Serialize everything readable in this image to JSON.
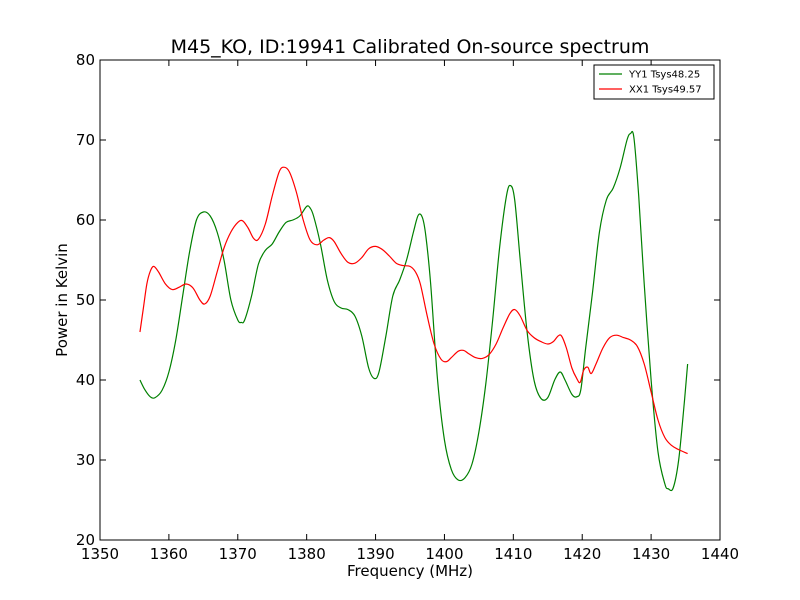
{
  "chart_data": {
    "type": "line",
    "title": "M45_KO, ID:19941 Calibrated On-source spectrum",
    "xlabel": "Frequency (MHz)",
    "ylabel": "Power in Kelvin",
    "xlim": [
      1350,
      1440
    ],
    "ylim": [
      20,
      80
    ],
    "xticks": [
      1350,
      1360,
      1370,
      1380,
      1390,
      1400,
      1410,
      1420,
      1430,
      1440
    ],
    "yticks": [
      20,
      30,
      40,
      50,
      60,
      70,
      80
    ],
    "grid": false,
    "legend_position": "top-right",
    "series": [
      {
        "name": "YY1 Tsys48.25",
        "color": "#008000",
        "points": [
          [
            1355.8,
            40.0
          ],
          [
            1356.5,
            38.8
          ],
          [
            1357.3,
            37.9
          ],
          [
            1358.0,
            37.8
          ],
          [
            1359.0,
            38.7
          ],
          [
            1360.0,
            41.0
          ],
          [
            1361.0,
            45.0
          ],
          [
            1362.0,
            50.5
          ],
          [
            1363.0,
            56.0
          ],
          [
            1364.0,
            60.0
          ],
          [
            1365.0,
            61.0
          ],
          [
            1366.0,
            60.5
          ],
          [
            1367.0,
            58.5
          ],
          [
            1368.0,
            55.0
          ],
          [
            1369.0,
            50.0
          ],
          [
            1370.0,
            47.5
          ],
          [
            1370.5,
            47.2
          ],
          [
            1371.0,
            47.5
          ],
          [
            1372.0,
            50.5
          ],
          [
            1373.0,
            54.5
          ],
          [
            1374.0,
            56.2
          ],
          [
            1375.0,
            57.0
          ],
          [
            1376.0,
            58.5
          ],
          [
            1377.0,
            59.7
          ],
          [
            1378.0,
            60.0
          ],
          [
            1379.0,
            60.5
          ],
          [
            1380.0,
            61.7
          ],
          [
            1380.5,
            61.5
          ],
          [
            1381.0,
            60.5
          ],
          [
            1382.0,
            57.0
          ],
          [
            1383.0,
            52.5
          ],
          [
            1384.0,
            49.8
          ],
          [
            1385.0,
            49.0
          ],
          [
            1386.0,
            48.8
          ],
          [
            1387.0,
            48.0
          ],
          [
            1388.0,
            45.5
          ],
          [
            1389.0,
            41.5
          ],
          [
            1389.8,
            40.2
          ],
          [
            1390.5,
            41.0
          ],
          [
            1391.5,
            45.5
          ],
          [
            1392.5,
            50.5
          ],
          [
            1393.5,
            52.5
          ],
          [
            1394.5,
            55.0
          ],
          [
            1395.5,
            58.5
          ],
          [
            1396.2,
            60.6
          ],
          [
            1396.8,
            60.3
          ],
          [
            1397.3,
            58.0
          ],
          [
            1398.0,
            52.0
          ],
          [
            1399.0,
            40.0
          ],
          [
            1400.0,
            32.5
          ],
          [
            1401.0,
            28.8
          ],
          [
            1402.0,
            27.5
          ],
          [
            1403.0,
            27.8
          ],
          [
            1404.0,
            29.5
          ],
          [
            1405.0,
            33.5
          ],
          [
            1406.0,
            39.5
          ],
          [
            1407.0,
            47.5
          ],
          [
            1408.0,
            56.5
          ],
          [
            1409.0,
            63.0
          ],
          [
            1409.6,
            64.3
          ],
          [
            1410.2,
            62.5
          ],
          [
            1411.0,
            55.0
          ],
          [
            1412.0,
            46.0
          ],
          [
            1413.0,
            40.0
          ],
          [
            1414.0,
            37.7
          ],
          [
            1415.0,
            37.8
          ],
          [
            1416.0,
            40.0
          ],
          [
            1416.8,
            41.0
          ],
          [
            1417.5,
            40.0
          ],
          [
            1418.5,
            38.2
          ],
          [
            1419.2,
            37.9
          ],
          [
            1419.8,
            38.8
          ],
          [
            1420.5,
            44.0
          ],
          [
            1421.5,
            51.0
          ],
          [
            1422.5,
            58.5
          ],
          [
            1423.5,
            62.5
          ],
          [
            1424.5,
            64.0
          ],
          [
            1425.5,
            66.5
          ],
          [
            1426.5,
            70.0
          ],
          [
            1427.0,
            70.8
          ],
          [
            1427.5,
            70.3
          ],
          [
            1428.2,
            63.0
          ],
          [
            1429.0,
            52.0
          ],
          [
            1430.0,
            40.0
          ],
          [
            1431.0,
            31.0
          ],
          [
            1432.0,
            27.0
          ],
          [
            1432.5,
            26.4
          ],
          [
            1433.2,
            26.5
          ],
          [
            1434.0,
            30.0
          ],
          [
            1434.8,
            37.0
          ],
          [
            1435.3,
            42.0
          ]
        ]
      },
      {
        "name": "XX1 Tsys49.57",
        "color": "#ff0000",
        "points": [
          [
            1355.8,
            46.0
          ],
          [
            1356.3,
            49.0
          ],
          [
            1356.8,
            52.0
          ],
          [
            1357.3,
            53.6
          ],
          [
            1357.8,
            54.2
          ],
          [
            1358.5,
            53.5
          ],
          [
            1359.5,
            52.0
          ],
          [
            1360.5,
            51.3
          ],
          [
            1361.5,
            51.6
          ],
          [
            1362.5,
            52.0
          ],
          [
            1363.5,
            51.5
          ],
          [
            1364.5,
            50.0
          ],
          [
            1365.2,
            49.5
          ],
          [
            1366.0,
            50.5
          ],
          [
            1367.0,
            53.5
          ],
          [
            1368.0,
            56.5
          ],
          [
            1369.0,
            58.5
          ],
          [
            1370.0,
            59.7
          ],
          [
            1370.7,
            59.9
          ],
          [
            1371.5,
            59.0
          ],
          [
            1372.3,
            57.7
          ],
          [
            1373.0,
            57.6
          ],
          [
            1374.0,
            59.5
          ],
          [
            1375.0,
            63.0
          ],
          [
            1376.0,
            66.0
          ],
          [
            1376.7,
            66.6
          ],
          [
            1377.5,
            66.0
          ],
          [
            1378.5,
            63.5
          ],
          [
            1379.5,
            60.0
          ],
          [
            1380.5,
            57.5
          ],
          [
            1381.5,
            56.9
          ],
          [
            1382.5,
            57.5
          ],
          [
            1383.3,
            57.8
          ],
          [
            1384.0,
            57.3
          ],
          [
            1385.0,
            55.8
          ],
          [
            1386.0,
            54.7
          ],
          [
            1387.0,
            54.6
          ],
          [
            1388.0,
            55.3
          ],
          [
            1389.0,
            56.4
          ],
          [
            1390.0,
            56.7
          ],
          [
            1391.0,
            56.3
          ],
          [
            1392.0,
            55.5
          ],
          [
            1393.0,
            54.6
          ],
          [
            1394.0,
            54.3
          ],
          [
            1395.0,
            54.2
          ],
          [
            1395.8,
            53.5
          ],
          [
            1396.5,
            52.0
          ],
          [
            1397.5,
            48.0
          ],
          [
            1398.5,
            44.5
          ],
          [
            1399.5,
            42.6
          ],
          [
            1400.3,
            42.3
          ],
          [
            1401.0,
            42.8
          ],
          [
            1402.0,
            43.6
          ],
          [
            1402.8,
            43.7
          ],
          [
            1403.5,
            43.3
          ],
          [
            1404.5,
            42.8
          ],
          [
            1405.5,
            42.7
          ],
          [
            1406.5,
            43.2
          ],
          [
            1407.5,
            44.5
          ],
          [
            1408.5,
            46.5
          ],
          [
            1409.5,
            48.3
          ],
          [
            1410.2,
            48.8
          ],
          [
            1411.0,
            48.0
          ],
          [
            1412.0,
            46.2
          ],
          [
            1413.0,
            45.3
          ],
          [
            1414.0,
            44.8
          ],
          [
            1415.0,
            44.5
          ],
          [
            1415.8,
            44.8
          ],
          [
            1416.5,
            45.5
          ],
          [
            1417.0,
            45.5
          ],
          [
            1417.7,
            44.0
          ],
          [
            1418.5,
            41.5
          ],
          [
            1419.2,
            40.2
          ],
          [
            1419.7,
            39.7
          ],
          [
            1420.2,
            41.2
          ],
          [
            1420.8,
            41.6
          ],
          [
            1421.3,
            40.8
          ],
          [
            1422.0,
            42.0
          ],
          [
            1423.0,
            44.0
          ],
          [
            1424.0,
            45.3
          ],
          [
            1425.0,
            45.6
          ],
          [
            1426.0,
            45.3
          ],
          [
            1427.0,
            45.0
          ],
          [
            1428.0,
            44.2
          ],
          [
            1429.0,
            42.0
          ],
          [
            1430.0,
            38.5
          ],
          [
            1431.0,
            35.0
          ],
          [
            1432.0,
            32.8
          ],
          [
            1433.0,
            31.8
          ],
          [
            1434.0,
            31.3
          ],
          [
            1435.3,
            30.8
          ]
        ]
      }
    ]
  }
}
